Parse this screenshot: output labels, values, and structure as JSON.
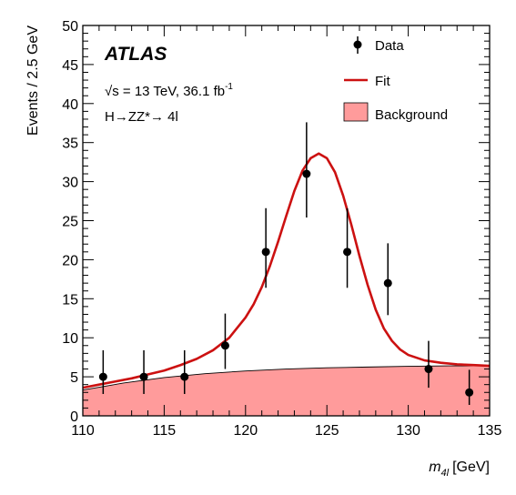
{
  "chart_data": {
    "type": "scatter",
    "experiment": "ATLAS",
    "energy_label": "√s = 13 TeV, 36.1 fb",
    "lumi_exponent": "-1",
    "channel_label": "H→ZZ*→ 4l",
    "xlabel": "m",
    "xlabel_sub": "4l",
    "xlabel_unit": "[GeV]",
    "ylabel": "Events / 2.5 GeV",
    "xlim": [
      110,
      135
    ],
    "ylim": [
      0,
      50
    ],
    "x_ticks": [
      110,
      115,
      120,
      125,
      130,
      135
    ],
    "y_ticks": [
      0,
      5,
      10,
      15,
      20,
      25,
      30,
      35,
      40,
      45,
      50
    ],
    "legend": {
      "position": "top-right",
      "data": "Data",
      "fit": "Fit",
      "background": "Background"
    },
    "series": [
      {
        "name": "Data",
        "kind": "points-with-errors",
        "color": "#000000",
        "x": [
          111.25,
          113.75,
          116.25,
          118.75,
          121.25,
          123.75,
          126.25,
          128.75,
          131.25,
          133.75
        ],
        "y": [
          5,
          5,
          5,
          9,
          21,
          31,
          21,
          17,
          6,
          3
        ],
        "y_err_low": [
          2.2,
          2.2,
          2.2,
          3.0,
          4.6,
          5.6,
          4.6,
          4.1,
          2.4,
          1.6
        ],
        "y_err_high": [
          3.4,
          3.4,
          3.4,
          4.1,
          5.6,
          6.6,
          5.6,
          5.1,
          3.6,
          2.9
        ]
      },
      {
        "name": "Fit",
        "kind": "line",
        "color": "#cc1111",
        "x": [
          110,
          111,
          112,
          113,
          114,
          115,
          116,
          117,
          118,
          119,
          120,
          120.5,
          121,
          121.5,
          122,
          122.5,
          123,
          123.5,
          124,
          124.5,
          125,
          125.5,
          126,
          126.5,
          127,
          127.5,
          128,
          128.5,
          129,
          129.5,
          130,
          131,
          132,
          133,
          134,
          135
        ],
        "y": [
          3.6,
          4.0,
          4.4,
          4.8,
          5.3,
          5.8,
          6.5,
          7.3,
          8.4,
          10.0,
          12.6,
          14.3,
          16.5,
          19.2,
          22.3,
          25.6,
          28.8,
          31.4,
          33.0,
          33.6,
          33.0,
          31.2,
          28.2,
          24.5,
          20.5,
          16.8,
          13.6,
          11.2,
          9.6,
          8.5,
          7.8,
          7.1,
          6.8,
          6.6,
          6.5,
          6.4
        ]
      },
      {
        "name": "Background",
        "kind": "area",
        "color": "#ff9b9b",
        "x": [
          110,
          112.5,
          115,
          117.5,
          120,
          122.5,
          125,
          127.5,
          130,
          132.5,
          135
        ],
        "y": [
          3.3,
          4.2,
          4.9,
          5.4,
          5.75,
          6.0,
          6.15,
          6.25,
          6.35,
          6.4,
          6.4
        ]
      }
    ]
  }
}
